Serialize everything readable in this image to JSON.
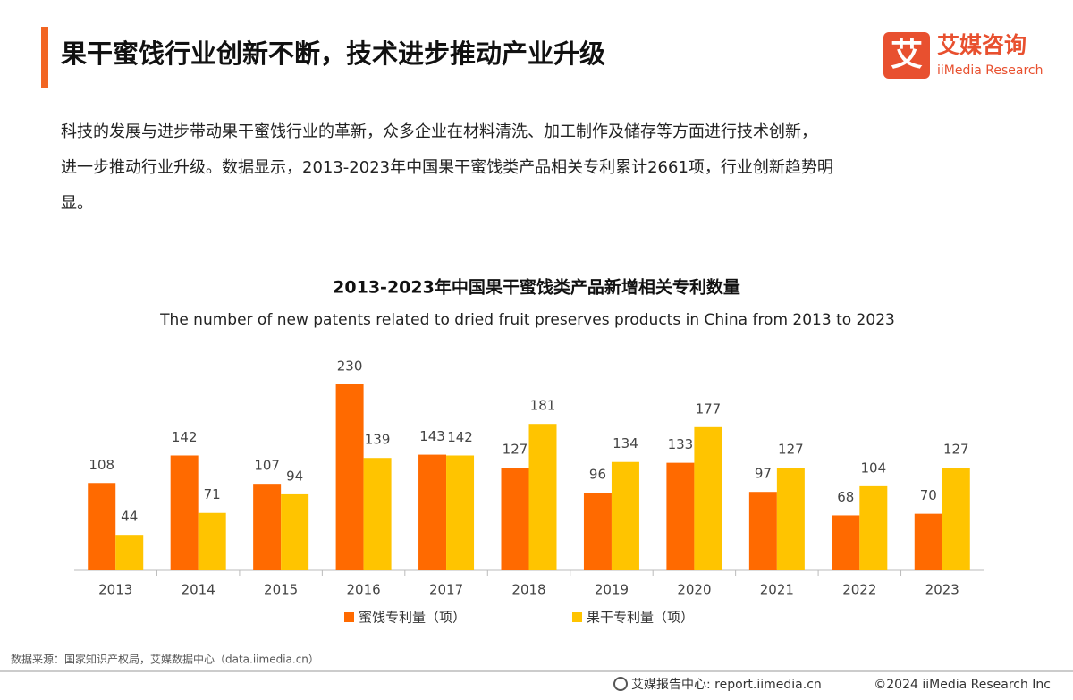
{
  "header": {
    "title": "果干蜜饯行业创新不断，技术进步推动产业升级",
    "logo_cn": "艾媒咨询",
    "logo_en": "iiMedia Research"
  },
  "paragraph": [
    "科技的发展与进步带动果干蜜饯行业的革新，众多企业在材料清洗、加工制作及储存等方面进行技术创新，",
    "进一步推动行业升级。数据显示，2013-2023年中国果干蜜饯类产品相关专利累计2661项，行业创新趋势明",
    "显。"
  ],
  "chart_data": {
    "type": "bar",
    "title": "2013-2023年中国果干蜜饯类产品新增相关专利数量",
    "subtitle": "The number of new patents related to dried fruit preserves products in China from 2013 to 2023",
    "categories": [
      "2013",
      "2014",
      "2015",
      "2016",
      "2017",
      "2018",
      "2019",
      "2020",
      "2021",
      "2022",
      "2023"
    ],
    "series": [
      {
        "name": "蜜饯专利量（项）",
        "color": "#ff6a00",
        "values": [
          108,
          142,
          107,
          230,
          143,
          127,
          96,
          133,
          97,
          68,
          70
        ]
      },
      {
        "name": "果干专利量（项）",
        "color": "#ffc400",
        "values": [
          44,
          71,
          94,
          139,
          142,
          181,
          134,
          177,
          127,
          104,
          127
        ]
      }
    ]
  },
  "footer": {
    "source": "数据来源：国家知识产权局，艾媒数据中心（data.iimedia.cn）",
    "report": "艾媒报告中心: report.iimedia.cn",
    "copyright": "©2024  iiMedia Research Inc"
  }
}
